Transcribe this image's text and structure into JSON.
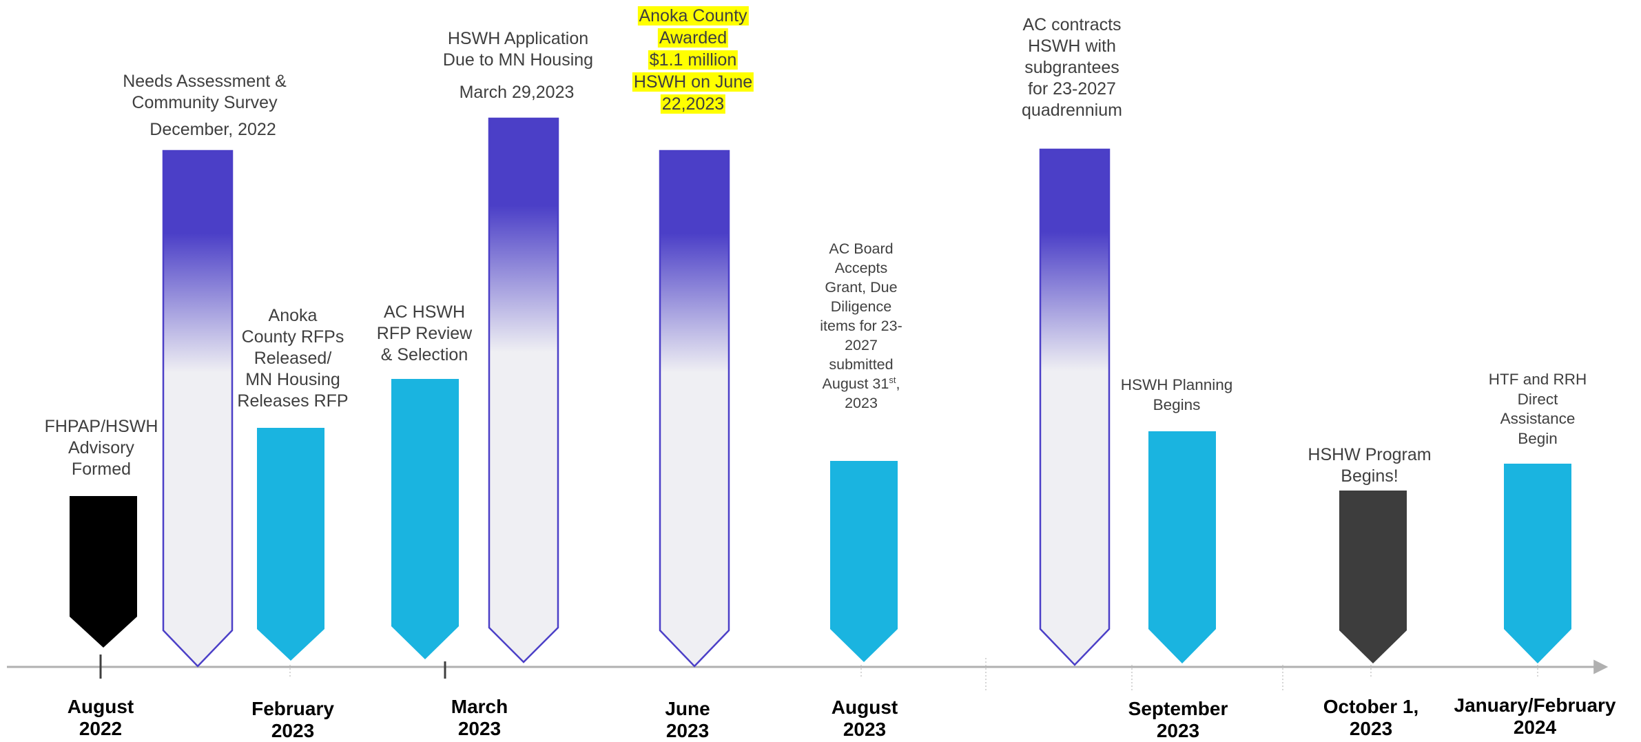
{
  "colors": {
    "accent_blue": "#1ab4e0",
    "purple": "#4b3fc7",
    "black": "#000000",
    "dark_gray": "#3d3d3d",
    "axis": "#b0b0b0",
    "highlight": "#ffff00"
  },
  "milestones": [
    {
      "id": "fhpap",
      "label": "FHPAP/HSWH\nAdvisory\nFormed",
      "shape": "black-arrow"
    },
    {
      "id": "needs",
      "label": "Needs Assessment &\nCommunity Survey",
      "sublabel": "December, 2022",
      "shape": "purple-gradient-arrow"
    },
    {
      "id": "rfps",
      "label": "Anoka\nCounty RFPs\nReleased/\nMN Housing\nReleases RFP",
      "shape": "blue-arrow"
    },
    {
      "id": "review",
      "label": "AC HSWH\nRFP Review\n& Selection",
      "shape": "blue-arrow"
    },
    {
      "id": "application",
      "label": "HSWH Application\nDue to MN Housing",
      "sublabel": "March 29,2023",
      "shape": "purple-gradient-arrow"
    },
    {
      "id": "awarded",
      "label": "Anoka County\nAwarded\n$1.1 million\nHSWH on June\n22,2023",
      "shape": "purple-gradient-arrow",
      "highlighted": true
    },
    {
      "id": "board",
      "label_lines": [
        "AC Board",
        "Accepts",
        "Grant,  Due",
        "Diligence",
        "items for 23-",
        "2027",
        "submitted"
      ],
      "label_last_line": "August 31",
      "label_superscript": "st",
      "label_last_suffix": ",",
      "label_final": "2023",
      "shape": "blue-arrow"
    },
    {
      "id": "contracts",
      "label": "AC contracts\nHSWH with\nsubgrantees\nfor 23-2027\nquadrennium",
      "shape": "purple-gradient-arrow"
    },
    {
      "id": "planning",
      "label": "HSWH Planning\nBegins",
      "shape": "blue-arrow"
    },
    {
      "id": "program",
      "label": "HSHW Program\nBegins!",
      "shape": "dark-arrow"
    },
    {
      "id": "htf",
      "label": "HTF and RRH\nDirect\nAssistance\nBegin",
      "shape": "blue-arrow"
    }
  ],
  "dates": [
    {
      "id": "aug2022",
      "label": "August\n2022"
    },
    {
      "id": "feb2023",
      "label": "February\n2023"
    },
    {
      "id": "mar2023",
      "label": "March\n2023"
    },
    {
      "id": "jun2023",
      "label": "June\n2023"
    },
    {
      "id": "aug2023",
      "label": "August\n2023"
    },
    {
      "id": "sep2023",
      "label": "September\n2023"
    },
    {
      "id": "oct2023",
      "label": "October 1,\n2023"
    },
    {
      "id": "janfeb2024",
      "label": "January/February\n2024"
    }
  ]
}
